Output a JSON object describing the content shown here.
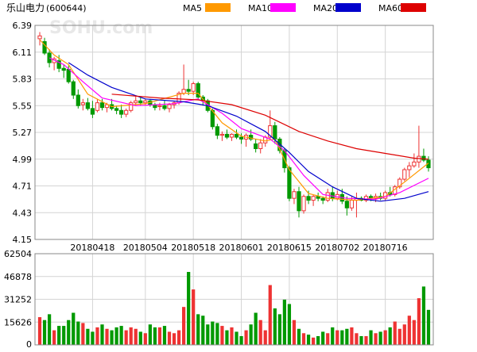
{
  "header": {
    "title": "乐山电力",
    "code": "(600644)"
  },
  "legend": [
    {
      "label": "MA5",
      "color": "#ff9900"
    },
    {
      "label": "MA10",
      "color": "#ff00ff"
    },
    {
      "label": "MA20",
      "color": "#0000cc"
    },
    {
      "label": "MA60",
      "color": "#dd0000"
    }
  ],
  "watermark": "SOHU.com",
  "colors": {
    "up": "#ee3333",
    "down": "#009900",
    "grid": "#d4d4d4",
    "frame": "#888888",
    "axis_text": "#000000"
  },
  "chart_data": {
    "type": "candlestick",
    "price_axis": {
      "ticks": [
        "6.39",
        "6.11",
        "5.83",
        "5.55",
        "5.27",
        "4.99",
        "4.71",
        "4.43",
        "4.15"
      ],
      "range": [
        4.15,
        6.39
      ]
    },
    "volume_axis": {
      "ticks": [
        "62504",
        "46878",
        "31252",
        "15626",
        "0"
      ],
      "range": [
        0,
        62504
      ]
    },
    "date_labels": [
      {
        "label": "20180418",
        "index": 11
      },
      {
        "label": "20180504",
        "index": 22
      },
      {
        "label": "20180518",
        "index": 32
      },
      {
        "label": "20180601",
        "index": 42
      },
      {
        "label": "20180615",
        "index": 52
      },
      {
        "label": "20180702",
        "index": 62
      },
      {
        "label": "20180716",
        "index": 72
      }
    ],
    "ohlc": [
      [
        6.25,
        6.32,
        6.18,
        6.28
      ],
      [
        6.22,
        6.26,
        6.08,
        6.1
      ],
      [
        6.1,
        6.14,
        5.95,
        6.0
      ],
      [
        6.0,
        6.06,
        5.92,
        6.04
      ],
      [
        6.02,
        6.08,
        5.9,
        5.94
      ],
      [
        5.94,
        5.98,
        5.84,
        5.92
      ],
      [
        5.93,
        5.97,
        5.78,
        5.8
      ],
      [
        5.8,
        5.82,
        5.62,
        5.66
      ],
      [
        5.66,
        5.72,
        5.52,
        5.55
      ],
      [
        5.56,
        5.62,
        5.5,
        5.58
      ],
      [
        5.58,
        5.63,
        5.5,
        5.52
      ],
      [
        5.52,
        5.6,
        5.42,
        5.46
      ],
      [
        5.5,
        5.62,
        5.48,
        5.58
      ],
      [
        5.58,
        5.62,
        5.5,
        5.53
      ],
      [
        5.53,
        5.58,
        5.48,
        5.56
      ],
      [
        5.56,
        5.62,
        5.5,
        5.52
      ],
      [
        5.52,
        5.55,
        5.46,
        5.5
      ],
      [
        5.5,
        5.56,
        5.42,
        5.46
      ],
      [
        5.46,
        5.52,
        5.43,
        5.5
      ],
      [
        5.5,
        5.6,
        5.48,
        5.58
      ],
      [
        5.58,
        5.66,
        5.55,
        5.6
      ],
      [
        5.6,
        5.64,
        5.55,
        5.58
      ],
      [
        5.58,
        5.62,
        5.55,
        5.6
      ],
      [
        5.6,
        5.62,
        5.54,
        5.56
      ],
      [
        5.56,
        5.58,
        5.5,
        5.53
      ],
      [
        5.54,
        5.58,
        5.5,
        5.55
      ],
      [
        5.55,
        5.6,
        5.5,
        5.52
      ],
      [
        5.52,
        5.58,
        5.48,
        5.56
      ],
      [
        5.56,
        5.6,
        5.52,
        5.58
      ],
      [
        5.58,
        5.7,
        5.56,
        5.68
      ],
      [
        5.68,
        5.98,
        5.66,
        5.72
      ],
      [
        5.72,
        5.82,
        5.66,
        5.7
      ],
      [
        5.7,
        5.8,
        5.66,
        5.78
      ],
      [
        5.78,
        5.8,
        5.62,
        5.64
      ],
      [
        5.64,
        5.66,
        5.55,
        5.6
      ],
      [
        5.6,
        5.62,
        5.48,
        5.5
      ],
      [
        5.5,
        5.52,
        5.3,
        5.33
      ],
      [
        5.33,
        5.36,
        5.2,
        5.24
      ],
      [
        5.24,
        5.28,
        5.18,
        5.25
      ],
      [
        5.25,
        5.3,
        5.2,
        5.22
      ],
      [
        5.22,
        5.26,
        5.18,
        5.25
      ],
      [
        5.25,
        5.3,
        5.2,
        5.22
      ],
      [
        5.22,
        5.26,
        5.15,
        5.2
      ],
      [
        5.2,
        5.26,
        5.12,
        5.24
      ],
      [
        5.24,
        5.3,
        5.18,
        5.2
      ],
      [
        5.15,
        5.2,
        5.06,
        5.1
      ],
      [
        5.1,
        5.2,
        5.05,
        5.16
      ],
      [
        5.16,
        5.24,
        5.12,
        5.22
      ],
      [
        5.22,
        5.5,
        5.2,
        5.34
      ],
      [
        5.34,
        5.38,
        5.15,
        5.2
      ],
      [
        5.2,
        5.22,
        5.05,
        5.08
      ],
      [
        5.08,
        5.1,
        4.85,
        4.9
      ],
      [
        4.9,
        4.92,
        4.55,
        4.58
      ],
      [
        4.58,
        4.68,
        4.52,
        4.65
      ],
      [
        4.65,
        4.7,
        4.38,
        4.45
      ],
      [
        4.45,
        4.62,
        4.42,
        4.6
      ],
      [
        4.6,
        4.66,
        4.52,
        4.56
      ],
      [
        4.56,
        4.62,
        4.5,
        4.6
      ],
      [
        4.6,
        4.64,
        4.55,
        4.58
      ],
      [
        4.58,
        4.6,
        4.52,
        4.56
      ],
      [
        4.56,
        4.68,
        4.54,
        4.64
      ],
      [
        4.64,
        4.7,
        4.55,
        4.58
      ],
      [
        4.58,
        4.66,
        4.56,
        4.62
      ],
      [
        4.62,
        4.68,
        4.52,
        4.55
      ],
      [
        4.55,
        4.6,
        4.4,
        4.48
      ],
      [
        4.48,
        4.6,
        4.45,
        4.56
      ],
      [
        4.56,
        4.64,
        4.38,
        4.58
      ],
      [
        4.58,
        4.6,
        4.55,
        4.56
      ],
      [
        4.56,
        4.62,
        4.54,
        4.6
      ],
      [
        4.6,
        4.62,
        4.55,
        4.58
      ],
      [
        4.58,
        4.63,
        4.54,
        4.6
      ],
      [
        4.6,
        4.64,
        4.56,
        4.58
      ],
      [
        4.58,
        4.66,
        4.56,
        4.64
      ],
      [
        4.64,
        4.7,
        4.6,
        4.62
      ],
      [
        4.62,
        4.72,
        4.6,
        4.7
      ],
      [
        4.7,
        4.8,
        4.68,
        4.78
      ],
      [
        4.78,
        4.9,
        4.76,
        4.88
      ],
      [
        4.88,
        4.96,
        4.8,
        4.92
      ],
      [
        4.92,
        5.05,
        4.9,
        4.96
      ],
      [
        4.96,
        5.34,
        4.9,
        5.02
      ],
      [
        5.02,
        5.1,
        4.96,
        4.98
      ],
      [
        4.98,
        5.02,
        4.86,
        4.9
      ]
    ],
    "volume": [
      19000,
      17000,
      21000,
      10000,
      13000,
      13000,
      17000,
      22000,
      16000,
      15000,
      11000,
      9000,
      12000,
      14000,
      11000,
      10000,
      12000,
      13000,
      10000,
      12000,
      11000,
      9000,
      8000,
      14000,
      12000,
      12000,
      13000,
      9000,
      8000,
      10000,
      26000,
      50000,
      38000,
      21000,
      20000,
      14000,
      16000,
      15000,
      13000,
      10000,
      12000,
      9000,
      6000,
      10000,
      14000,
      22000,
      17000,
      10000,
      41000,
      25000,
      21000,
      31000,
      28000,
      17000,
      11000,
      8000,
      7000,
      5000,
      6000,
      9000,
      8000,
      12000,
      10000,
      10000,
      11000,
      12000,
      8000,
      6000,
      6000,
      10000,
      8000,
      9000,
      10000,
      12000,
      16000,
      11000,
      14000,
      20000,
      17000,
      32000,
      40000,
      24000
    ],
    "ma_series": [
      {
        "name": "MA5",
        "points": [
          [
            0,
            6.24
          ],
          [
            3,
            6.08
          ],
          [
            6,
            5.98
          ],
          [
            10,
            5.67
          ],
          [
            15,
            5.54
          ],
          [
            22,
            5.57
          ],
          [
            30,
            5.68
          ],
          [
            33,
            5.68
          ],
          [
            38,
            5.37
          ],
          [
            42,
            5.23
          ],
          [
            47,
            5.18
          ],
          [
            49,
            5.2
          ],
          [
            52,
            4.88
          ],
          [
            56,
            4.63
          ],
          [
            60,
            4.58
          ],
          [
            66,
            4.56
          ],
          [
            72,
            4.6
          ],
          [
            76,
            4.75
          ],
          [
            81,
            4.95
          ]
        ]
      },
      {
        "name": "MA10",
        "points": [
          [
            2,
            6.05
          ],
          [
            5,
            5.98
          ],
          [
            9,
            5.8
          ],
          [
            13,
            5.63
          ],
          [
            20,
            5.55
          ],
          [
            28,
            5.57
          ],
          [
            33,
            5.62
          ],
          [
            38,
            5.47
          ],
          [
            42,
            5.31
          ],
          [
            48,
            5.2
          ],
          [
            51,
            5.08
          ],
          [
            55,
            4.82
          ],
          [
            59,
            4.62
          ],
          [
            64,
            4.58
          ],
          [
            70,
            4.57
          ],
          [
            75,
            4.64
          ],
          [
            81,
            4.79
          ]
        ]
      },
      {
        "name": "MA20",
        "points": [
          [
            6,
            6.0
          ],
          [
            10,
            5.87
          ],
          [
            15,
            5.74
          ],
          [
            22,
            5.62
          ],
          [
            30,
            5.59
          ],
          [
            35,
            5.55
          ],
          [
            41,
            5.44
          ],
          [
            47,
            5.28
          ],
          [
            52,
            5.06
          ],
          [
            56,
            4.86
          ],
          [
            61,
            4.7
          ],
          [
            66,
            4.58
          ],
          [
            71,
            4.55
          ],
          [
            76,
            4.58
          ],
          [
            81,
            4.65
          ]
        ]
      },
      {
        "name": "MA60",
        "points": [
          [
            15,
            5.67
          ],
          [
            25,
            5.63
          ],
          [
            33,
            5.61
          ],
          [
            40,
            5.56
          ],
          [
            47,
            5.45
          ],
          [
            54,
            5.28
          ],
          [
            60,
            5.18
          ],
          [
            66,
            5.1
          ],
          [
            72,
            5.05
          ],
          [
            78,
            5.0
          ],
          [
            81,
            4.99
          ]
        ]
      }
    ]
  }
}
